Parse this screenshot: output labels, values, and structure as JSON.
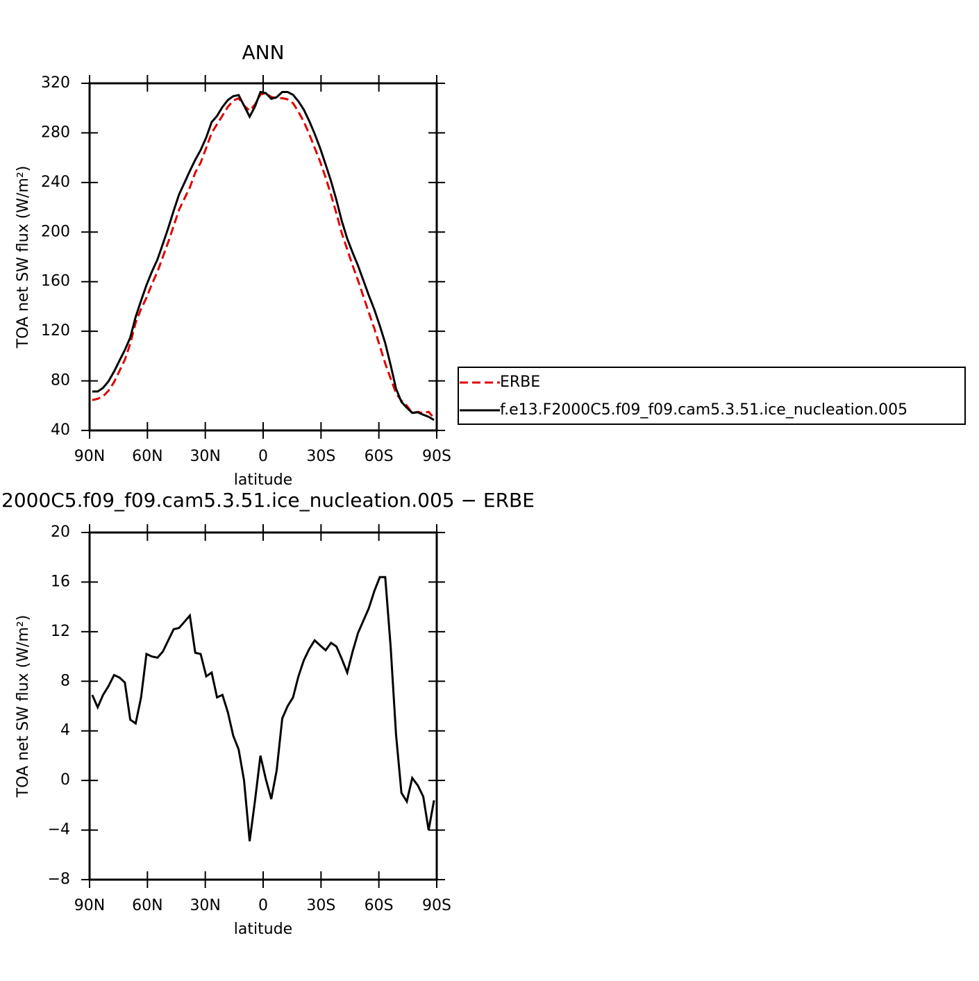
{
  "chart_data": [
    {
      "type": "line",
      "title": "ANN",
      "xlabel": "latitude",
      "ylabel": "TOA net SW flux (W/m²)",
      "x": [
        88.6,
        85.8,
        83.0,
        80.2,
        77.3,
        74.5,
        71.7,
        68.9,
        66.1,
        63.3,
        60.5,
        57.7,
        54.8,
        52.0,
        49.2,
        46.4,
        43.6,
        40.8,
        38.0,
        35.2,
        32.4,
        29.5,
        26.7,
        23.9,
        21.1,
        18.3,
        15.5,
        12.7,
        9.9,
        7.0,
        4.2,
        1.4,
        -1.4,
        -4.2,
        -7.0,
        -9.9,
        -12.7,
        -15.5,
        -18.3,
        -21.1,
        -23.9,
        -26.7,
        -29.5,
        -32.4,
        -35.2,
        -38.0,
        -40.8,
        -43.6,
        -46.4,
        -49.2,
        -52.0,
        -54.8,
        -57.7,
        -60.5,
        -63.3,
        -66.1,
        -68.9,
        -71.7,
        -74.5,
        -77.3,
        -80.2,
        -83.0,
        -85.8,
        -88.6
      ],
      "xlim": [
        90,
        -90
      ],
      "xticks": [
        {
          "value": 90,
          "label": "90N"
        },
        {
          "value": 60,
          "label": "60N"
        },
        {
          "value": 30,
          "label": "30N"
        },
        0,
        {
          "value": -30,
          "label": "30S"
        },
        {
          "value": -60,
          "label": "60S"
        },
        {
          "value": -90,
          "label": "90S"
        }
      ],
      "ylim": [
        40,
        320
      ],
      "yticks": [
        40,
        80,
        120,
        160,
        200,
        240,
        280,
        320
      ],
      "legend": "right",
      "series": [
        {
          "name": "ERBE",
          "color": "#e00000",
          "line_style": "dashed",
          "values": [
            64.5,
            65.5,
            67.5,
            72,
            79,
            88,
            97,
            110,
            127,
            138,
            147,
            158,
            168,
            180,
            192,
            205,
            218,
            227,
            236,
            248,
            256,
            268,
            280,
            287,
            294,
            301,
            306,
            308,
            302,
            298,
            303,
            311,
            312,
            309,
            308,
            308,
            307,
            304,
            297,
            289,
            279,
            268,
            257,
            244,
            230,
            215,
            199,
            186,
            173,
            161,
            148,
            135,
            122,
            108,
            94,
            82,
            70,
            64,
            60,
            54,
            55,
            54,
            55,
            50
          ]
        },
        {
          "name": "f.e13.F2000C5.f09_f09.cam5.3.51.ice_nucleation.005",
          "color": "#000000",
          "line_style": "solid",
          "values": [
            71.4,
            71.4,
            74.4,
            79.6,
            87.5,
            96.3,
            104.9,
            114.9,
            131.6,
            144.7,
            157.2,
            168,
            177.9,
            190.4,
            203.3,
            217.2,
            230.3,
            239.8,
            249.3,
            258.3,
            266.2,
            276.4,
            288.7,
            293.7,
            300.9,
            306.5,
            309.6,
            310.5,
            302,
            293.1,
            301.4,
            313,
            312.1,
            307.5,
            308.8,
            313,
            313,
            310.7,
            305.4,
            298.7,
            289.6,
            279.3,
            267.9,
            254.5,
            241.1,
            225.8,
            208.8,
            194.7,
            183.4,
            172.9,
            160.9,
            148.9,
            137.3,
            124.4,
            110.4,
            92.8,
            73.7,
            63,
            58.3,
            54.2,
            54.6,
            52.7,
            51,
            48.4
          ]
        }
      ]
    },
    {
      "type": "line",
      "title": "2000C5.f09_f09.cam5.3.51.ice_nucleation.005 − ERBE",
      "xlabel": "latitude",
      "ylabel": "TOA net SW flux (W/m²)",
      "x": [
        88.6,
        85.8,
        83.0,
        80.2,
        77.3,
        74.5,
        71.7,
        68.9,
        66.1,
        63.3,
        60.5,
        57.7,
        54.8,
        52.0,
        49.2,
        46.4,
        43.6,
        40.8,
        38.0,
        35.2,
        32.4,
        29.5,
        26.7,
        23.9,
        21.1,
        18.3,
        15.5,
        12.7,
        9.9,
        7.0,
        4.2,
        1.4,
        -1.4,
        -4.2,
        -7.0,
        -9.9,
        -12.7,
        -15.5,
        -18.3,
        -21.1,
        -23.9,
        -26.7,
        -29.5,
        -32.4,
        -35.2,
        -38.0,
        -40.8,
        -43.6,
        -46.4,
        -49.2,
        -52.0,
        -54.8,
        -57.7,
        -60.5,
        -63.3,
        -66.1,
        -68.9,
        -71.7,
        -74.5,
        -77.3,
        -80.2,
        -83.0,
        -85.8,
        -88.6
      ],
      "xlim": [
        90,
        -90
      ],
      "xticks": [
        {
          "value": 90,
          "label": "90N"
        },
        {
          "value": 60,
          "label": "60N"
        },
        {
          "value": 30,
          "label": "30N"
        },
        0,
        {
          "value": -30,
          "label": "30S"
        },
        {
          "value": -60,
          "label": "60S"
        },
        {
          "value": -90,
          "label": "90S"
        }
      ],
      "ylim": [
        -8,
        20
      ],
      "yticks": [
        {
          "value": -8,
          "label": "−8"
        },
        {
          "value": -4,
          "label": "−4"
        },
        0,
        4,
        8,
        12,
        16,
        20
      ],
      "color": "#000000",
      "line_style": "solid",
      "values": [
        6.9,
        5.9,
        6.9,
        7.6,
        8.5,
        8.3,
        7.9,
        4.9,
        4.6,
        6.7,
        10.2,
        10.0,
        9.9,
        10.4,
        11.3,
        12.2,
        12.3,
        12.8,
        13.3,
        10.3,
        10.2,
        8.4,
        8.7,
        6.7,
        6.9,
        5.5,
        3.6,
        2.5,
        0,
        -4.9,
        -1.6,
        2.0,
        0.1,
        -1.5,
        0.8,
        5.0,
        6.0,
        6.7,
        8.4,
        9.7,
        10.6,
        11.3,
        10.9,
        10.5,
        11.1,
        10.8,
        9.8,
        8.7,
        10.4,
        11.9,
        12.9,
        13.9,
        15.3,
        16.4,
        16.4,
        10.8,
        3.7,
        -1.0,
        -1.7,
        0.2,
        -0.4,
        -1.3,
        -4.0,
        -1.6
      ]
    }
  ]
}
